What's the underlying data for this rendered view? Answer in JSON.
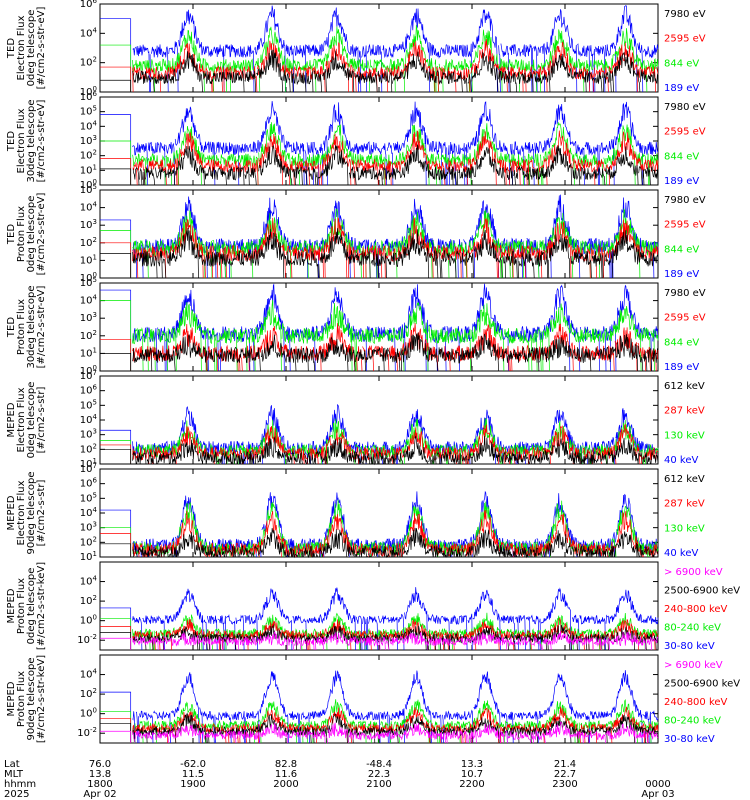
{
  "colors": {
    "black": "#000000",
    "red": "#ff0000",
    "green": "#00ee00",
    "blue": "#0000ff",
    "magenta": "#ff00ff"
  },
  "chart_data": [
    {
      "type": "line",
      "ylabel_lines": [
        "TED",
        "Electron Flux",
        "0deg telescope",
        "[#/cm2-s-str-eV]"
      ],
      "y_log_range": [
        0,
        6
      ],
      "y_tick_exps": [
        0,
        2,
        4,
        6
      ],
      "legend": [
        {
          "label": "7980 eV",
          "color": "black"
        },
        {
          "label": "2595 eV",
          "color": "red"
        },
        {
          "label": "844 eV",
          "color": "green"
        },
        {
          "label": "189 eV",
          "color": "blue"
        }
      ],
      "series_start_log": {
        "blue": 5.0,
        "green": 3.2,
        "red": 1.7,
        "black": 0.8
      },
      "series_base_log": {
        "blue": 2.8,
        "green": 1.8,
        "red": 1.3,
        "black": 1.0
      },
      "peak_amp": {
        "blue": 2.4,
        "green": 2.0,
        "red": 1.6,
        "black": 1.2
      }
    },
    {
      "type": "line",
      "ylabel_lines": [
        "TED",
        "Electron Flux",
        "30deg telescope",
        "[#/cm2-s-str-eV]"
      ],
      "y_log_range": [
        0,
        6
      ],
      "y_tick_exps": [
        0,
        1,
        2,
        3,
        4,
        5,
        6
      ],
      "legend": [
        {
          "label": "7980 eV",
          "color": "black"
        },
        {
          "label": "2595 eV",
          "color": "red"
        },
        {
          "label": "844 eV",
          "color": "green"
        },
        {
          "label": "189 eV",
          "color": "blue"
        }
      ],
      "series_start_log": {
        "blue": 4.8,
        "green": 3.0,
        "red": 1.8,
        "black": 1.1
      },
      "series_base_log": {
        "blue": 2.5,
        "green": 1.7,
        "red": 1.3,
        "black": 0.8
      },
      "peak_amp": {
        "blue": 2.5,
        "green": 2.0,
        "red": 1.7,
        "black": 1.3
      }
    },
    {
      "type": "line",
      "ylabel_lines": [
        "TED",
        "Proton Flux",
        "0deg telescope",
        "[#/cm2-s-str-eV]"
      ],
      "y_log_range": [
        0,
        5
      ],
      "y_tick_exps": [
        0,
        1,
        2,
        3,
        4,
        5
      ],
      "legend": [
        {
          "label": "7980 eV",
          "color": "black"
        },
        {
          "label": "2595 eV",
          "color": "red"
        },
        {
          "label": "844 eV",
          "color": "green"
        },
        {
          "label": "189 eV",
          "color": "blue"
        }
      ],
      "series_start_log": {
        "blue": 3.3,
        "green": 2.7,
        "red": 2.0,
        "black": 1.4
      },
      "series_base_log": {
        "blue": 1.8,
        "green": 1.7,
        "red": 1.4,
        "black": 1.1
      },
      "peak_amp": {
        "blue": 2.2,
        "green": 1.5,
        "red": 1.3,
        "black": 1.0
      }
    },
    {
      "type": "line",
      "ylabel_lines": [
        "TED",
        "Proton Flux",
        "30deg telescope",
        "[#/cm2-s-str-eV]"
      ],
      "y_log_range": [
        0,
        5
      ],
      "y_tick_exps": [
        0,
        1,
        2,
        3,
        4,
        5
      ],
      "legend": [
        {
          "label": "7980 eV",
          "color": "black"
        },
        {
          "label": "2595 eV",
          "color": "red"
        },
        {
          "label": "844 eV",
          "color": "green"
        },
        {
          "label": "189 eV",
          "color": "blue"
        }
      ],
      "series_start_log": {
        "blue": 4.6,
        "green": 4.0,
        "red": 1.8,
        "black": 1.0
      },
      "series_base_log": {
        "blue": 2.1,
        "green": 2.0,
        "red": 1.0,
        "black": 0.9
      },
      "peak_amp": {
        "blue": 2.2,
        "green": 1.3,
        "red": 1.0,
        "black": 0.6
      }
    },
    {
      "type": "line",
      "ylabel_lines": [
        "MEPED",
        "Electron Flux",
        "0deg telescope",
        "[#/cm2-s-str]"
      ],
      "y_log_range": [
        1,
        7
      ],
      "y_tick_exps": [
        1,
        2,
        3,
        4,
        5,
        6,
        7
      ],
      "legend": [
        {
          "label": "612 keV",
          "color": "black"
        },
        {
          "label": "287 keV",
          "color": "red"
        },
        {
          "label": "130 keV",
          "color": "green"
        },
        {
          "label": "40 keV",
          "color": "blue"
        }
      ],
      "series_start_log": {
        "blue": 3.3,
        "green": 2.6,
        "red": 2.3,
        "black": 2.0
      },
      "series_base_log": {
        "blue": 2.1,
        "green": 1.9,
        "red": 1.7,
        "black": 1.4
      },
      "peak_amp": {
        "blue": 2.2,
        "green": 1.5,
        "red": 1.3,
        "black": 0.8
      }
    },
    {
      "type": "line",
      "ylabel_lines": [
        "MEPED",
        "Electron Flux",
        "90deg telescope",
        "[#/cm2-s-str]"
      ],
      "y_log_range": [
        1,
        7
      ],
      "y_tick_exps": [
        1,
        2,
        3,
        4,
        5,
        6,
        7
      ],
      "legend": [
        {
          "label": "612 keV",
          "color": "black"
        },
        {
          "label": "287 keV",
          "color": "red"
        },
        {
          "label": "130 keV",
          "color": "green"
        },
        {
          "label": "40 keV",
          "color": "blue"
        }
      ],
      "series_start_log": {
        "blue": 4.2,
        "green": 3.0,
        "red": 2.6,
        "black": 1.9
      },
      "series_base_log": {
        "blue": 1.8,
        "green": 1.6,
        "red": 1.5,
        "black": 1.3
      },
      "peak_amp": {
        "blue": 3.0,
        "green": 2.6,
        "red": 2.0,
        "black": 1.0
      }
    },
    {
      "type": "line",
      "ylabel_lines": [
        "MEPED",
        "Proton Flux",
        "0deg telescope",
        "[#/cm2-s-str-keV]"
      ],
      "y_log_range": [
        -3,
        6
      ],
      "y_tick_exps": [
        -2,
        0,
        2,
        4
      ],
      "legend": [
        {
          "label": "> 6900 keV",
          "color": "magenta"
        },
        {
          "label": "2500-6900 keV",
          "color": "black"
        },
        {
          "label": "240-800 keV",
          "color": "red"
        },
        {
          "label": "80-240 keV",
          "color": "green"
        },
        {
          "label": "30-80 keV",
          "color": "blue"
        }
      ],
      "series_start_log": {
        "blue": 1.3,
        "green": 0.2,
        "red": -0.6,
        "black": -1.2,
        "magenta": -1.8
      },
      "series_base_log": {
        "blue": 0.1,
        "green": -1.3,
        "red": -1.5,
        "black": -1.8,
        "magenta": -2.1
      },
      "peak_amp": {
        "blue": 2.6,
        "green": 1.4,
        "red": 1.0,
        "black": 0.6,
        "magenta": 0.3
      }
    },
    {
      "type": "line",
      "ylabel_lines": [
        "MEPED",
        "Proton Flux",
        "90deg telescope",
        "[#/cm2-s-str-keV]"
      ],
      "y_log_range": [
        -3,
        6
      ],
      "y_tick_exps": [
        -2,
        0,
        2,
        4
      ],
      "legend": [
        {
          "label": "> 6900 keV",
          "color": "magenta"
        },
        {
          "label": "2500-6900 keV",
          "color": "black"
        },
        {
          "label": "240-800 keV",
          "color": "red"
        },
        {
          "label": "80-240 keV",
          "color": "green"
        },
        {
          "label": "30-80 keV",
          "color": "blue"
        }
      ],
      "series_start_log": {
        "blue": 2.2,
        "green": 0.2,
        "red": -0.5,
        "black": -1.0,
        "magenta": -1.8
      },
      "series_base_log": {
        "blue": -0.2,
        "green": -1.2,
        "red": -1.5,
        "black": -1.8,
        "magenta": -2.2
      },
      "peak_amp": {
        "blue": 4.0,
        "green": 2.0,
        "red": 1.5,
        "black": 1.1,
        "magenta": 0.6
      }
    }
  ],
  "x_axis": {
    "row_labels": [
      "Lat",
      "MLT",
      "hhmm",
      "2025"
    ],
    "ticks": [
      {
        "lat": "76.0",
        "mlt": "13.8",
        "hhmm": "1800",
        "date": "Apr 02"
      },
      {
        "lat": "-62.0",
        "mlt": "11.5",
        "hhmm": "1900",
        "date": ""
      },
      {
        "lat": "82.8",
        "mlt": "11.6",
        "hhmm": "2000",
        "date": ""
      },
      {
        "lat": "-48.4",
        "mlt": "22.3",
        "hhmm": "2100",
        "date": ""
      },
      {
        "lat": "13.3",
        "mlt": "10.7",
        "hhmm": "2200",
        "date": ""
      },
      {
        "lat": "21.4",
        "mlt": "22.7",
        "hhmm": "2300",
        "date": ""
      },
      {
        "lat": "",
        "mlt": "",
        "hhmm": "0000",
        "date": "Apr 03"
      }
    ],
    "pass_centers_hours": [
      0.95,
      1.85,
      2.55,
      3.4,
      4.15,
      4.95,
      5.65
    ],
    "data_gap_hours": [
      0,
      0.33
    ]
  }
}
